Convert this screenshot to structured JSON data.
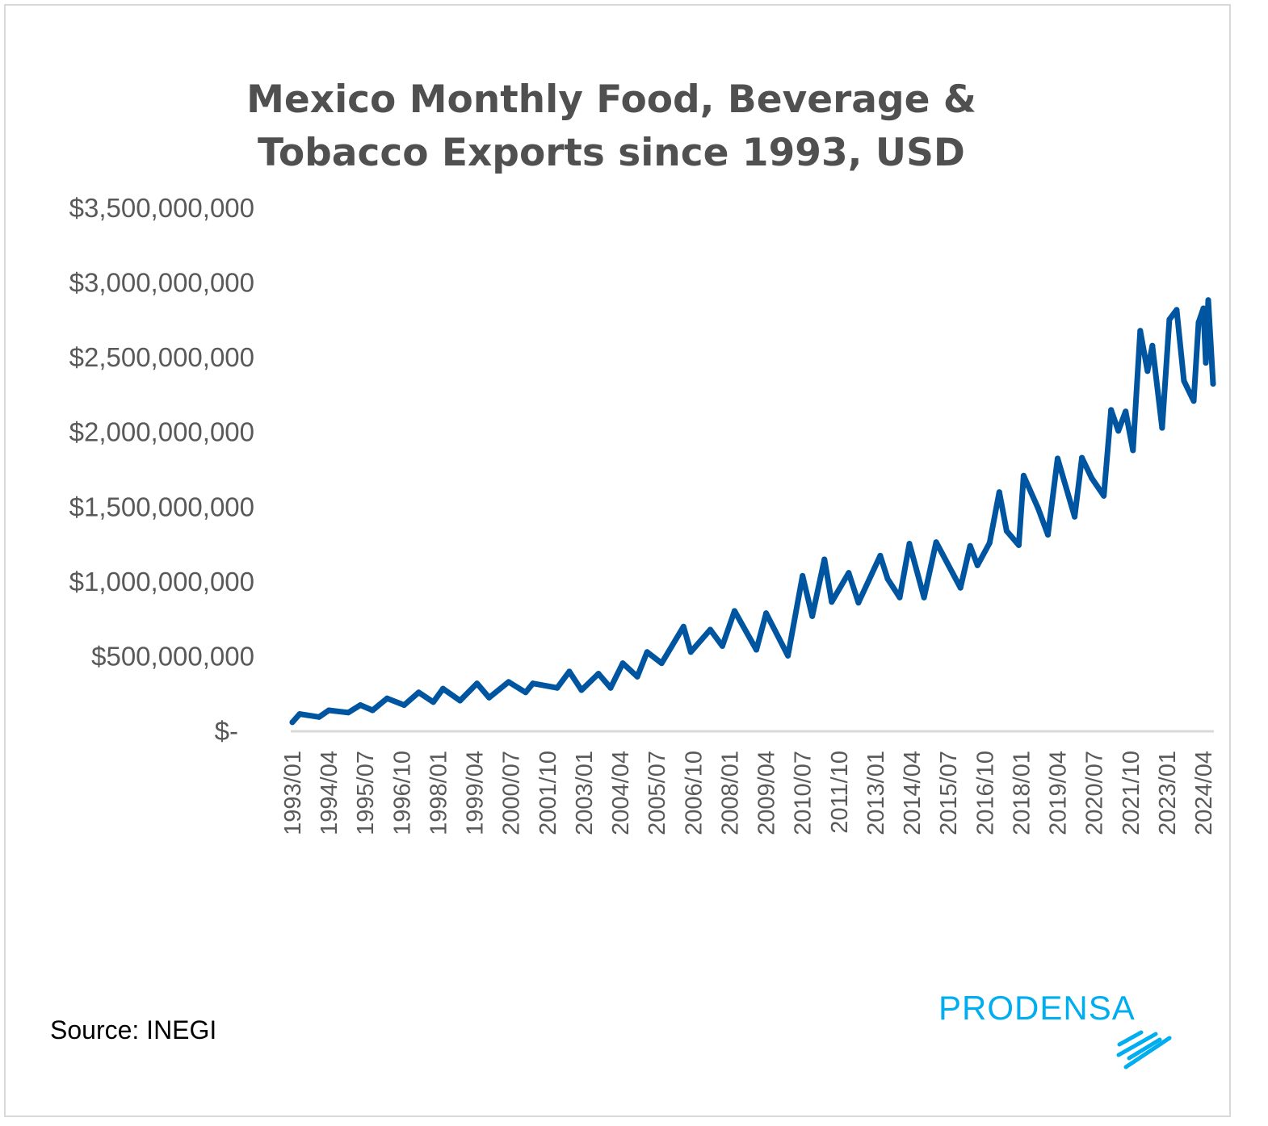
{
  "chart_data": {
    "type": "line",
    "title_lines": [
      "Mexico Monthly Food, Beverage &",
      "Tobacco Exports since 1993, USD"
    ],
    "xlabel": "",
    "ylabel": "",
    "ylim": [
      0,
      3500000000
    ],
    "y_ticks": [
      0,
      500000000,
      1000000000,
      1500000000,
      2000000000,
      2500000000,
      3000000000,
      3500000000
    ],
    "y_tick_labels": [
      "$-",
      "$500,000,000",
      "$1,000,000,000",
      "$1,500,000,000",
      "$2,000,000,000",
      "$2,500,000,000",
      "$3,000,000,000",
      "$3,500,000,000"
    ],
    "x_range": [
      "1993/01",
      "2024/08"
    ],
    "x_tick_labels": [
      "1993/01",
      "1994/04",
      "1995/07",
      "1996/10",
      "1998/01",
      "1999/04",
      "2000/07",
      "2001/10",
      "2003/01",
      "2004/04",
      "2005/07",
      "2006/10",
      "2008/01",
      "2009/04",
      "2010/07",
      "2011/10",
      "2013/01",
      "2014/04",
      "2015/07",
      "2016/10",
      "2018/01",
      "2019/04",
      "2020/07",
      "2021/10",
      "2023/01",
      "2024/04"
    ],
    "grid": false,
    "legend": "none",
    "line_color": "#0055a0",
    "series": [
      {
        "points": [
          [
            "1993/01",
            55000000
          ],
          [
            "1993/04",
            110000000
          ],
          [
            "1993/12",
            90000000
          ],
          [
            "1994/04",
            135000000
          ],
          [
            "1994/12",
            120000000
          ],
          [
            "1995/05",
            170000000
          ],
          [
            "1995/10",
            135000000
          ],
          [
            "1996/04",
            215000000
          ],
          [
            "1996/11",
            170000000
          ],
          [
            "1997/05",
            255000000
          ],
          [
            "1997/11",
            190000000
          ],
          [
            "1998/03",
            280000000
          ],
          [
            "1998/10",
            200000000
          ],
          [
            "1999/05",
            315000000
          ],
          [
            "1999/10",
            220000000
          ],
          [
            "2000/06",
            325000000
          ],
          [
            "2001/01",
            255000000
          ],
          [
            "2001/04",
            315000000
          ],
          [
            "2002/02",
            285000000
          ],
          [
            "2002/07",
            395000000
          ],
          [
            "2002/12",
            270000000
          ],
          [
            "2003/07",
            380000000
          ],
          [
            "2003/12",
            285000000
          ],
          [
            "2004/05",
            450000000
          ],
          [
            "2004/11",
            360000000
          ],
          [
            "2005/03",
            525000000
          ],
          [
            "2005/09",
            450000000
          ],
          [
            "2006/06",
            695000000
          ],
          [
            "2006/09",
            525000000
          ],
          [
            "2007/05",
            675000000
          ],
          [
            "2007/10",
            565000000
          ],
          [
            "2008/03",
            800000000
          ],
          [
            "2008/12",
            540000000
          ],
          [
            "2009/04",
            785000000
          ],
          [
            "2010/01",
            500000000
          ],
          [
            "2010/07",
            1035000000
          ],
          [
            "2010/11",
            765000000
          ],
          [
            "2011/04",
            1145000000
          ],
          [
            "2011/07",
            860000000
          ],
          [
            "2012/02",
            1055000000
          ],
          [
            "2012/06",
            855000000
          ],
          [
            "2013/03",
            1170000000
          ],
          [
            "2013/06",
            1015000000
          ],
          [
            "2013/11",
            890000000
          ],
          [
            "2014/03",
            1250000000
          ],
          [
            "2014/09",
            890000000
          ],
          [
            "2015/02",
            1260000000
          ],
          [
            "2015/12",
            955000000
          ],
          [
            "2016/04",
            1235000000
          ],
          [
            "2016/07",
            1105000000
          ],
          [
            "2016/12",
            1255000000
          ],
          [
            "2017/04",
            1595000000
          ],
          [
            "2017/07",
            1335000000
          ],
          [
            "2017/12",
            1240000000
          ],
          [
            "2018/02",
            1705000000
          ],
          [
            "2018/08",
            1485000000
          ],
          [
            "2018/12",
            1310000000
          ],
          [
            "2019/04",
            1820000000
          ],
          [
            "2019/11",
            1430000000
          ],
          [
            "2020/02",
            1825000000
          ],
          [
            "2020/06",
            1690000000
          ],
          [
            "2020/11",
            1570000000
          ],
          [
            "2021/02",
            2145000000
          ],
          [
            "2021/05",
            2005000000
          ],
          [
            "2021/08",
            2135000000
          ],
          [
            "2021/11",
            1875000000
          ],
          [
            "2022/02",
            2675000000
          ],
          [
            "2022/05",
            2405000000
          ],
          [
            "2022/07",
            2575000000
          ],
          [
            "2022/11",
            2025000000
          ],
          [
            "2023/02",
            2750000000
          ],
          [
            "2023/05",
            2815000000
          ],
          [
            "2023/08",
            2340000000
          ],
          [
            "2023/12",
            2205000000
          ],
          [
            "2024/02",
            2730000000
          ],
          [
            "2024/04",
            2825000000
          ],
          [
            "2024/05",
            2460000000
          ],
          [
            "2024/06",
            2880000000
          ],
          [
            "2024/08",
            2320000000
          ]
        ]
      }
    ]
  },
  "source": "Source: INEGI",
  "logo": {
    "text": "PRODENSA",
    "color": "#00aeef"
  }
}
